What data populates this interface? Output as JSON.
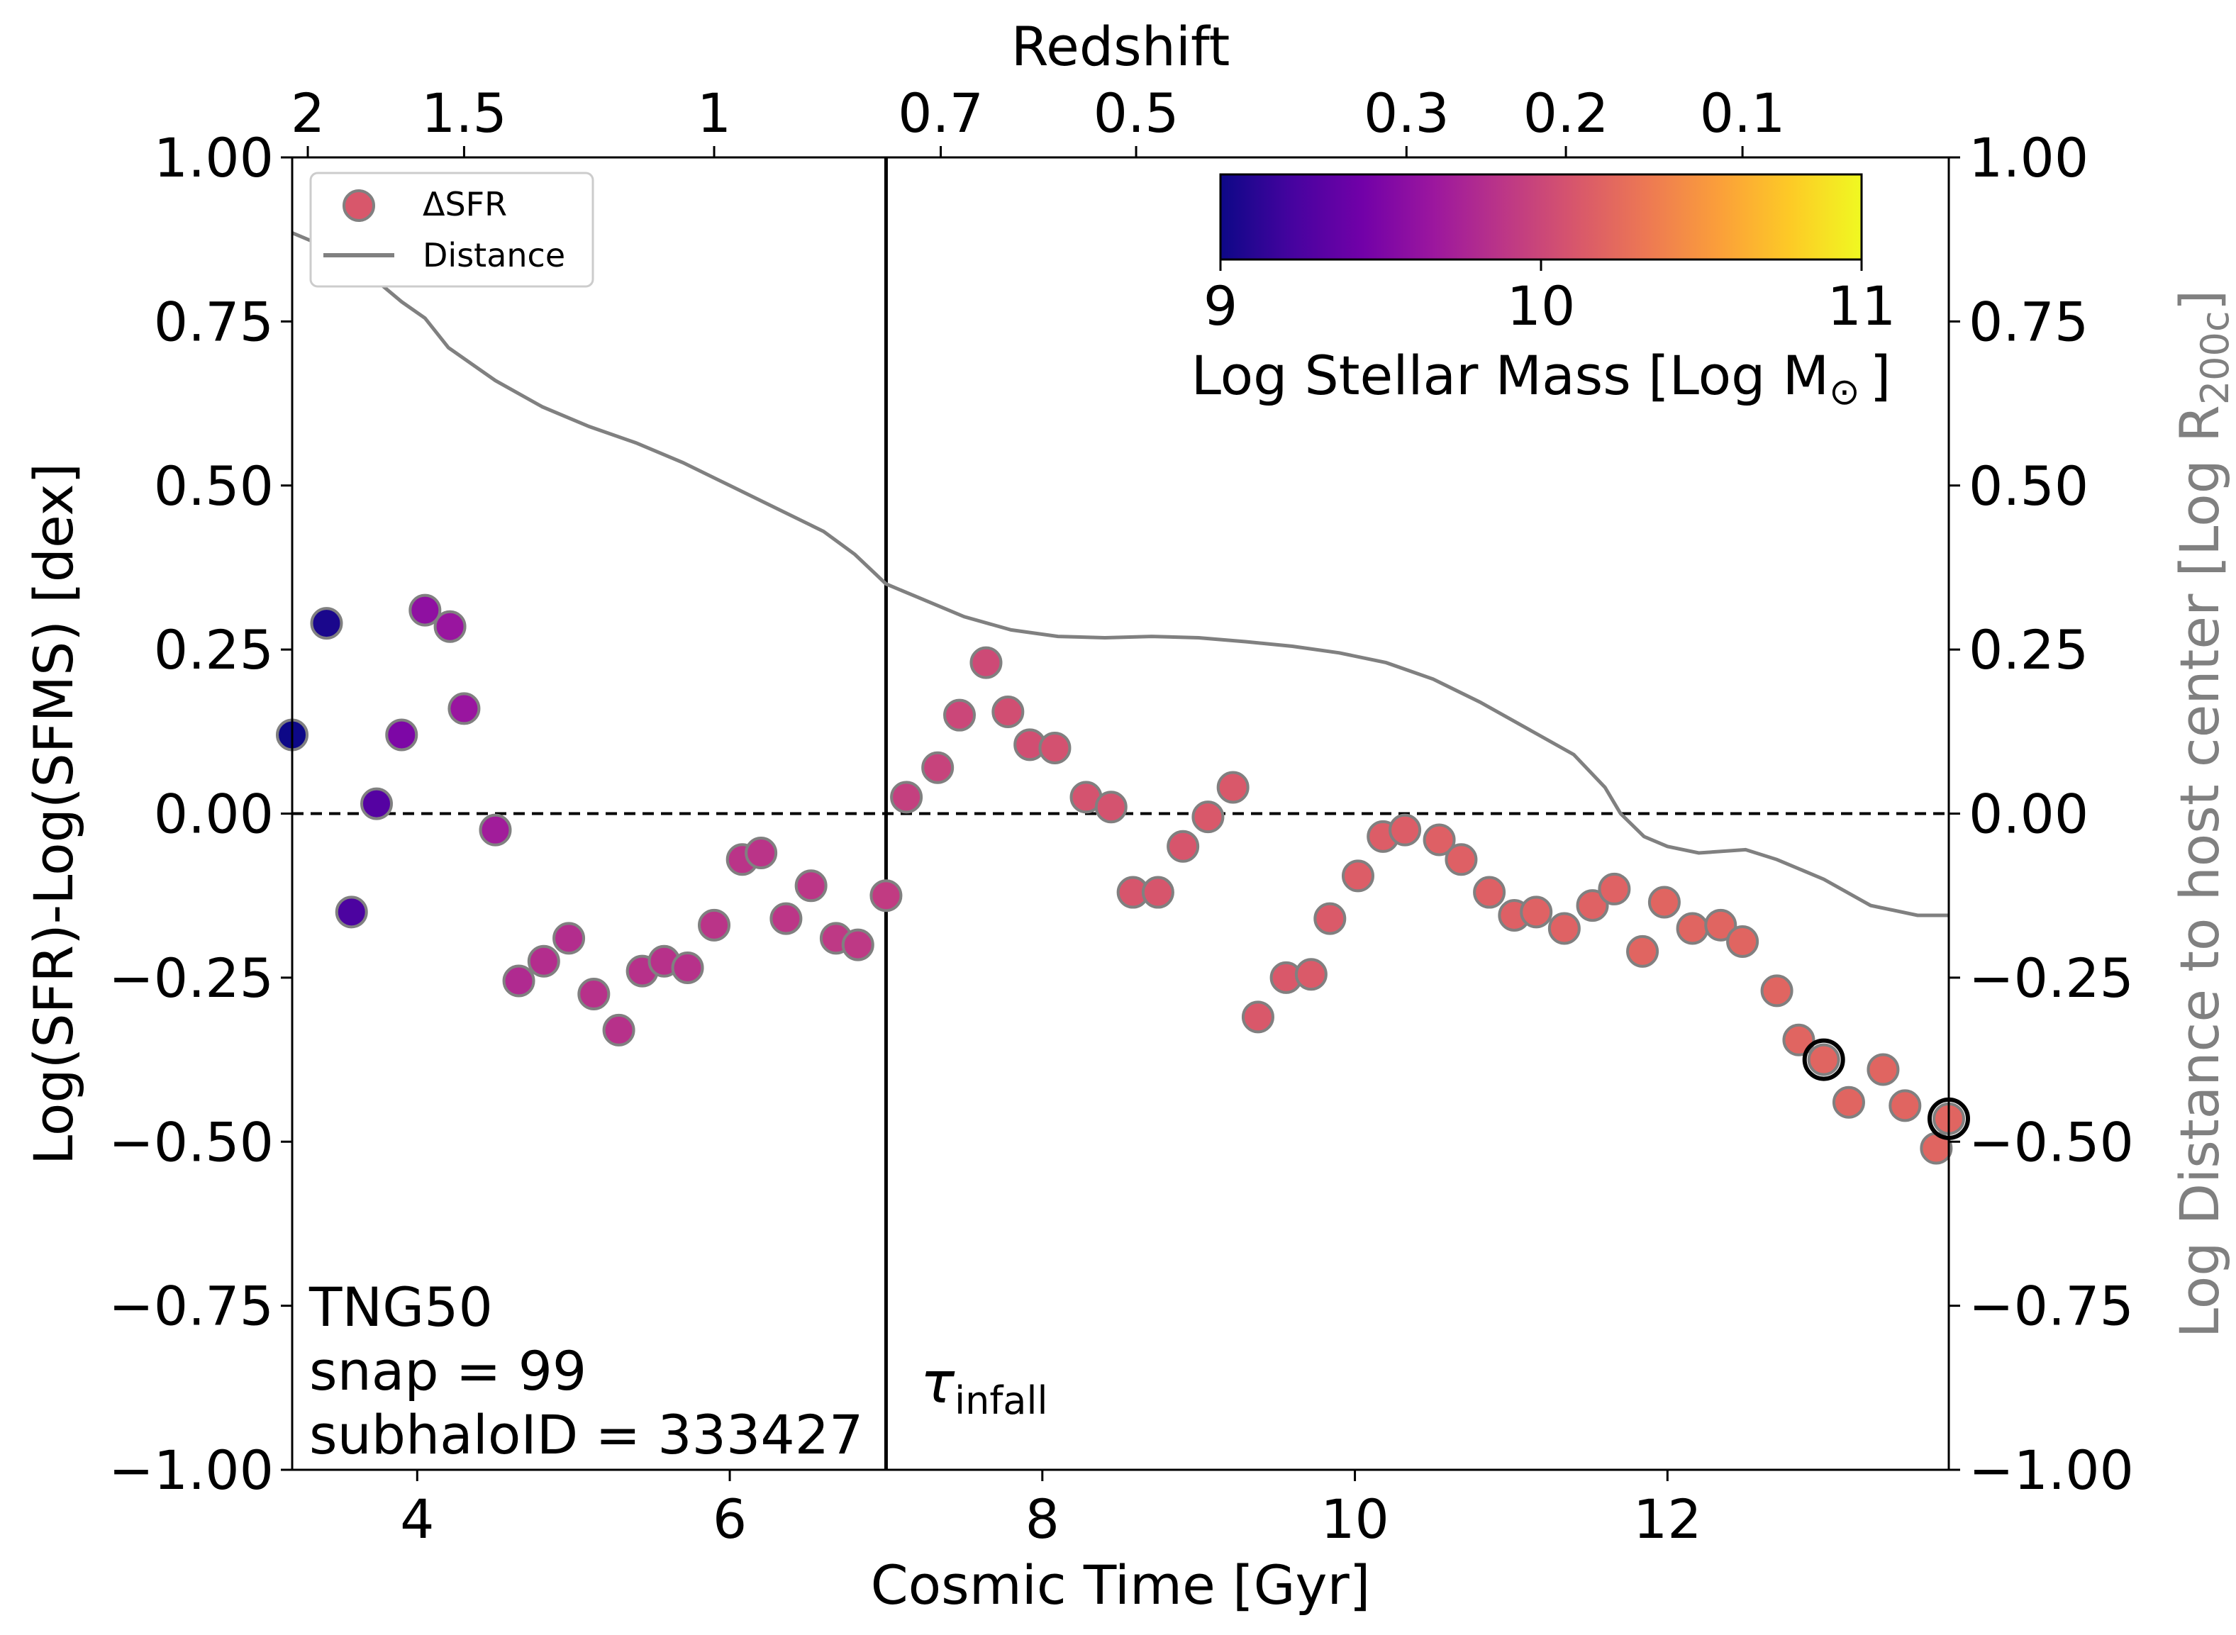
{
  "chart_data": {
    "type": "scatter",
    "xlabel": "Cosmic Time [Gyr]",
    "ylabel": "Log(SFR)-Log(SFMS) [dex]",
    "ylabel_right_prefix": "Log Distance to host center [Log R",
    "ylabel_right_sub": "200c",
    "ylabel_right_suffix": "]",
    "top_axis_label": "Redshift",
    "xlim": [
      3.2,
      13.8
    ],
    "ylim": [
      -1.0,
      1.0
    ],
    "x_ticks": [
      {
        "value": 4,
        "label": "4"
      },
      {
        "value": 6,
        "label": "6"
      },
      {
        "value": 8,
        "label": "8"
      },
      {
        "value": 10,
        "label": "10"
      },
      {
        "value": 12,
        "label": "12"
      }
    ],
    "y_ticks": [
      {
        "value": 1.0,
        "label": "1.00"
      },
      {
        "value": 0.75,
        "label": "0.75"
      },
      {
        "value": 0.5,
        "label": "0.50"
      },
      {
        "value": 0.25,
        "label": "0.25"
      },
      {
        "value": 0.0,
        "label": "0.00"
      },
      {
        "value": -0.25,
        "label": "−0.25"
      },
      {
        "value": -0.5,
        "label": "−0.50"
      },
      {
        "value": -0.75,
        "label": "−0.75"
      },
      {
        "value": -1.0,
        "label": "−1.00"
      }
    ],
    "redshift_ticks": [
      {
        "value": 3.3,
        "label": "2"
      },
      {
        "value": 4.3,
        "label": "1.5"
      },
      {
        "value": 5.9,
        "label": "1"
      },
      {
        "value": 7.35,
        "label": "0.7"
      },
      {
        "value": 8.6,
        "label": "0.5"
      },
      {
        "value": 10.33,
        "label": "0.3"
      },
      {
        "value": 11.35,
        "label": "0.2"
      },
      {
        "value": 12.48,
        "label": "0.1"
      }
    ],
    "infall_time": 7.0,
    "infall_label": "τ",
    "infall_sub": "infall",
    "zero_line": 0.0,
    "legend": {
      "dsfr_label": "ΔSFR",
      "distance_label": "Distance",
      "position": "top-left"
    },
    "colorbar": {
      "label_prefix": "Log Stellar Mass [Log M",
      "label_sun": "⊙",
      "label_suffix": "]",
      "ticks": [
        {
          "value": 9,
          "label": "9"
        },
        {
          "value": 10,
          "label": "10"
        },
        {
          "value": 11,
          "label": "11"
        }
      ],
      "range": [
        9,
        11
      ],
      "colormap": "plasma",
      "stops": [
        "#0d0887",
        "#46039f",
        "#7201a8",
        "#9c179e",
        "#bd3786",
        "#d8576b",
        "#ed7953",
        "#fb9f3a",
        "#fdca26",
        "#f0f921"
      ]
    },
    "annotation": [
      "TNG50",
      "snap = 99",
      "subhaloID = 333427"
    ],
    "series": [
      {
        "name": "ΔSFR",
        "points": [
          {
            "x": 3.2,
            "y": 0.12,
            "m": 9.0
          },
          {
            "x": 3.42,
            "y": 0.29,
            "m": 9.05
          },
          {
            "x": 3.58,
            "y": -0.15,
            "m": 9.25
          },
          {
            "x": 3.74,
            "y": 0.015,
            "m": 9.3
          },
          {
            "x": 3.9,
            "y": 0.12,
            "m": 9.5
          },
          {
            "x": 4.05,
            "y": 0.31,
            "m": 9.6
          },
          {
            "x": 4.21,
            "y": 0.285,
            "m": 9.65
          },
          {
            "x": 4.3,
            "y": 0.16,
            "m": 9.65
          },
          {
            "x": 4.5,
            "y": -0.025,
            "m": 9.7
          },
          {
            "x": 4.65,
            "y": -0.255,
            "m": 9.8
          },
          {
            "x": 4.81,
            "y": -0.225,
            "m": 9.82
          },
          {
            "x": 4.97,
            "y": -0.19,
            "m": 9.82
          },
          {
            "x": 5.13,
            "y": -0.275,
            "m": 9.85
          },
          {
            "x": 5.29,
            "y": -0.33,
            "m": 9.85
          },
          {
            "x": 5.44,
            "y": -0.24,
            "m": 9.85
          },
          {
            "x": 5.58,
            "y": -0.225,
            "m": 9.85
          },
          {
            "x": 5.73,
            "y": -0.235,
            "m": 9.85
          },
          {
            "x": 5.9,
            "y": -0.17,
            "m": 9.87
          },
          {
            "x": 6.08,
            "y": -0.07,
            "m": 9.87
          },
          {
            "x": 6.2,
            "y": -0.06,
            "m": 9.87
          },
          {
            "x": 6.36,
            "y": -0.16,
            "m": 9.88
          },
          {
            "x": 6.52,
            "y": -0.11,
            "m": 9.88
          },
          {
            "x": 6.68,
            "y": -0.19,
            "m": 9.9
          },
          {
            "x": 6.82,
            "y": -0.2,
            "m": 9.9
          },
          {
            "x": 7.0,
            "y": -0.125,
            "m": 9.92
          },
          {
            "x": 7.13,
            "y": 0.025,
            "m": 9.95
          },
          {
            "x": 7.33,
            "y": 0.07,
            "m": 9.97
          },
          {
            "x": 7.47,
            "y": 0.15,
            "m": 10.0
          },
          {
            "x": 7.64,
            "y": 0.23,
            "m": 10.02
          },
          {
            "x": 7.78,
            "y": 0.155,
            "m": 10.05
          },
          {
            "x": 7.92,
            "y": 0.105,
            "m": 10.05
          },
          {
            "x": 8.08,
            "y": 0.1,
            "m": 10.07
          },
          {
            "x": 8.28,
            "y": 0.025,
            "m": 10.08
          },
          {
            "x": 8.44,
            "y": 0.01,
            "m": 10.08
          },
          {
            "x": 8.58,
            "y": -0.12,
            "m": 10.1
          },
          {
            "x": 8.74,
            "y": -0.12,
            "m": 10.1
          },
          {
            "x": 8.9,
            "y": -0.05,
            "m": 10.1
          },
          {
            "x": 9.06,
            "y": -0.005,
            "m": 10.12
          },
          {
            "x": 9.22,
            "y": 0.04,
            "m": 10.12
          },
          {
            "x": 9.38,
            "y": -0.31,
            "m": 10.12
          },
          {
            "x": 9.56,
            "y": -0.25,
            "m": 10.12
          },
          {
            "x": 9.72,
            "y": -0.245,
            "m": 10.13
          },
          {
            "x": 9.84,
            "y": -0.16,
            "m": 10.13
          },
          {
            "x": 10.02,
            "y": -0.095,
            "m": 10.15
          },
          {
            "x": 10.18,
            "y": -0.035,
            "m": 10.15
          },
          {
            "x": 10.32,
            "y": -0.025,
            "m": 10.15
          },
          {
            "x": 10.54,
            "y": -0.04,
            "m": 10.17
          },
          {
            "x": 10.68,
            "y": -0.07,
            "m": 10.17
          },
          {
            "x": 10.86,
            "y": -0.12,
            "m": 10.17
          },
          {
            "x": 11.02,
            "y": -0.155,
            "m": 10.17
          },
          {
            "x": 11.16,
            "y": -0.15,
            "m": 10.18
          },
          {
            "x": 11.34,
            "y": -0.175,
            "m": 10.18
          },
          {
            "x": 11.52,
            "y": -0.14,
            "m": 10.18
          },
          {
            "x": 11.66,
            "y": -0.115,
            "m": 10.18
          },
          {
            "x": 11.84,
            "y": -0.21,
            "m": 10.2
          },
          {
            "x": 11.98,
            "y": -0.135,
            "m": 10.2
          },
          {
            "x": 12.16,
            "y": -0.175,
            "m": 10.2
          },
          {
            "x": 12.34,
            "y": -0.17,
            "m": 10.2
          },
          {
            "x": 12.48,
            "y": -0.195,
            "m": 10.2
          },
          {
            "x": 12.7,
            "y": -0.27,
            "m": 10.2
          },
          {
            "x": 12.84,
            "y": -0.345,
            "m": 10.2
          },
          {
            "x": 13.0,
            "y": -0.375,
            "m": 10.2
          },
          {
            "x": 13.16,
            "y": -0.44,
            "m": 10.2
          },
          {
            "x": 13.38,
            "y": -0.39,
            "m": 10.2
          },
          {
            "x": 13.52,
            "y": -0.445,
            "m": 10.2
          },
          {
            "x": 13.72,
            "y": -0.51,
            "m": 10.2
          },
          {
            "x": 13.8,
            "y": -0.465,
            "m": 10.2
          }
        ],
        "highlighted": [
          {
            "x": 13.0,
            "y": -0.375
          },
          {
            "x": 13.8,
            "y": -0.465
          }
        ]
      },
      {
        "name": "Distance",
        "color": "#808080",
        "points": [
          {
            "x": 3.2,
            "y": 0.885
          },
          {
            "x": 3.35,
            "y": 0.87
          },
          {
            "x": 3.5,
            "y": 0.845
          },
          {
            "x": 3.75,
            "y": 0.81
          },
          {
            "x": 3.9,
            "y": 0.78
          },
          {
            "x": 4.05,
            "y": 0.755
          },
          {
            "x": 4.2,
            "y": 0.71
          },
          {
            "x": 4.5,
            "y": 0.66
          },
          {
            "x": 4.8,
            "y": 0.62
          },
          {
            "x": 5.1,
            "y": 0.59
          },
          {
            "x": 5.4,
            "y": 0.565
          },
          {
            "x": 5.7,
            "y": 0.535
          },
          {
            "x": 6.0,
            "y": 0.5
          },
          {
            "x": 6.3,
            "y": 0.465
          },
          {
            "x": 6.6,
            "y": 0.43
          },
          {
            "x": 6.8,
            "y": 0.395
          },
          {
            "x": 7.0,
            "y": 0.35
          },
          {
            "x": 7.2,
            "y": 0.33
          },
          {
            "x": 7.5,
            "y": 0.3
          },
          {
            "x": 7.8,
            "y": 0.28
          },
          {
            "x": 8.1,
            "y": 0.27
          },
          {
            "x": 8.4,
            "y": 0.268
          },
          {
            "x": 8.7,
            "y": 0.27
          },
          {
            "x": 9.0,
            "y": 0.268
          },
          {
            "x": 9.3,
            "y": 0.262
          },
          {
            "x": 9.6,
            "y": 0.255
          },
          {
            "x": 9.9,
            "y": 0.245
          },
          {
            "x": 10.2,
            "y": 0.23
          },
          {
            "x": 10.5,
            "y": 0.205
          },
          {
            "x": 10.8,
            "y": 0.17
          },
          {
            "x": 11.1,
            "y": 0.13
          },
          {
            "x": 11.4,
            "y": 0.09
          },
          {
            "x": 11.6,
            "y": 0.04
          },
          {
            "x": 11.7,
            "y": 0.0
          },
          {
            "x": 11.85,
            "y": -0.035
          },
          {
            "x": 12.0,
            "y": -0.05
          },
          {
            "x": 12.2,
            "y": -0.06
          },
          {
            "x": 12.5,
            "y": -0.055
          },
          {
            "x": 12.7,
            "y": -0.07
          },
          {
            "x": 13.0,
            "y": -0.1
          },
          {
            "x": 13.3,
            "y": -0.14
          },
          {
            "x": 13.6,
            "y": -0.155
          },
          {
            "x": 13.8,
            "y": -0.155
          }
        ]
      }
    ]
  }
}
